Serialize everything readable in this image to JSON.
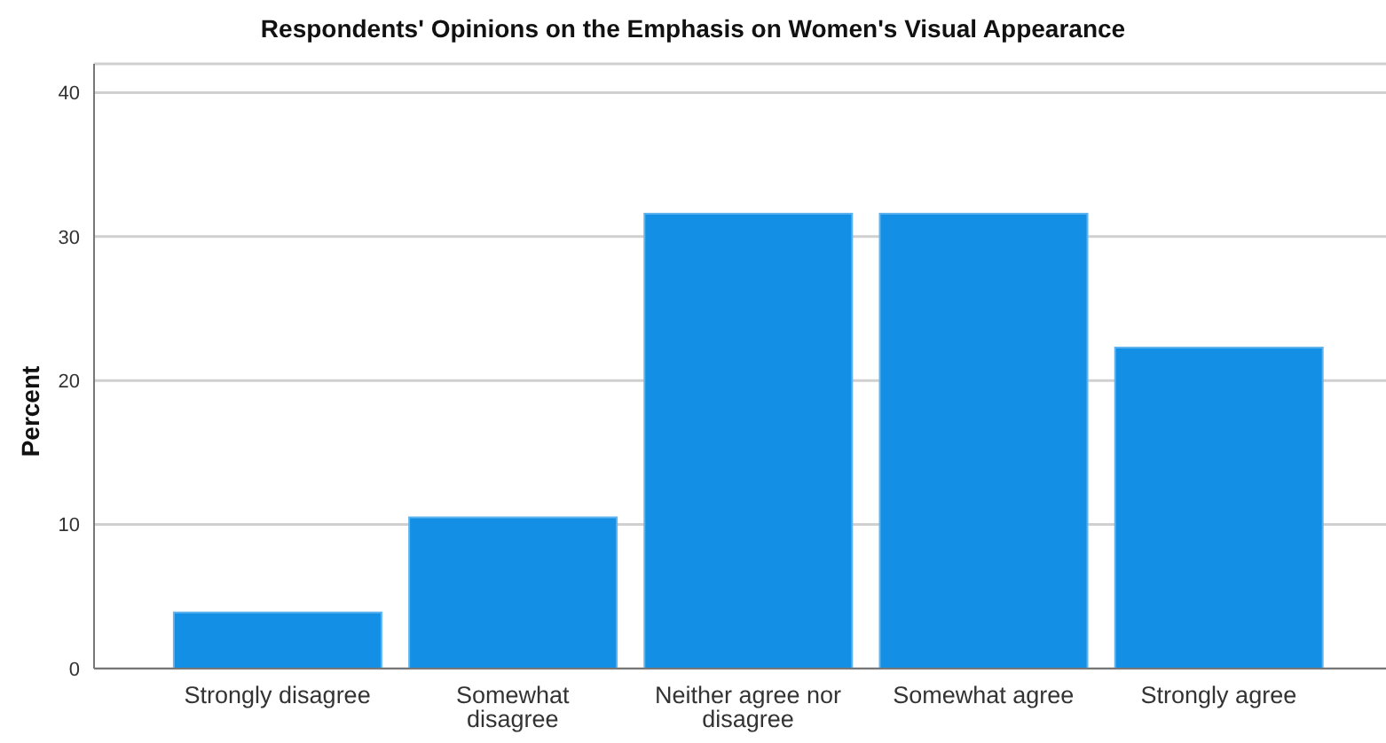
{
  "chart_data": {
    "type": "bar",
    "title": "Respondents' Opinions on the Emphasis on Women's Visual Appearance",
    "ylabel": "Percent",
    "categories": [
      "Strongly disagree",
      "Somewhat disagree",
      "Neither agree nor disagree",
      "Somewhat agree",
      "Strongly agree"
    ],
    "values": [
      3.9,
      10.5,
      31.6,
      31.6,
      22.3
    ],
    "color": "#1390e6",
    "ylim": [
      0,
      42
    ],
    "yticks": [
      0,
      10,
      20,
      30,
      40
    ],
    "grid": "y"
  }
}
